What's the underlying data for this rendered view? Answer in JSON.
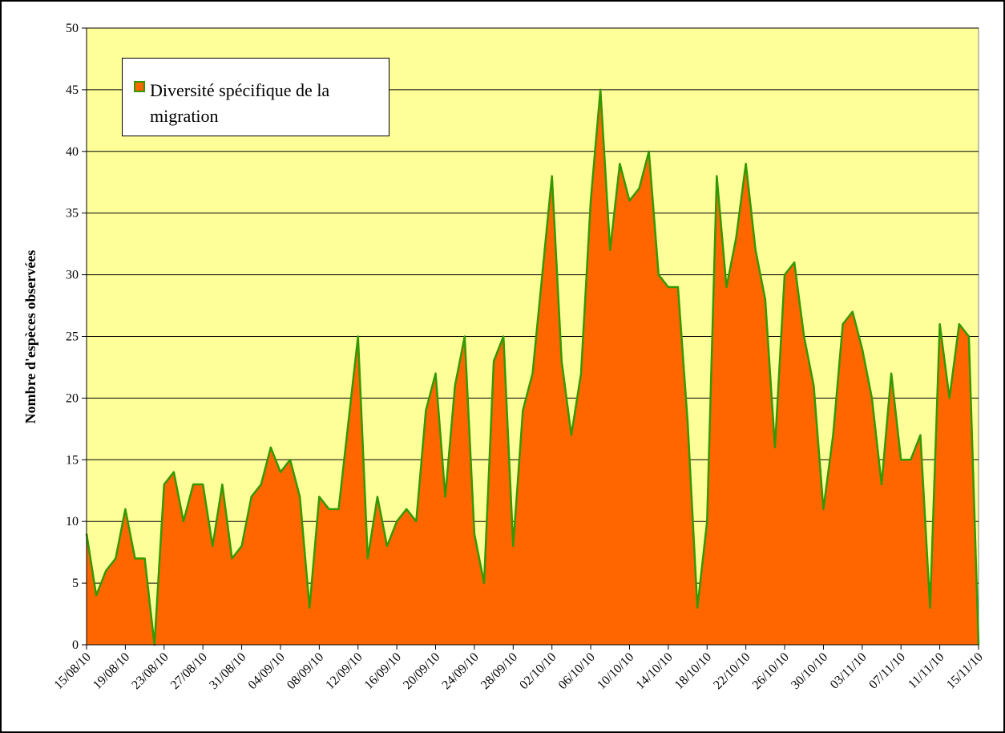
{
  "chart_data": {
    "type": "area",
    "y_label": "Nombre d'espèces observées",
    "categories": [
      "15/08/10",
      null,
      null,
      null,
      "19/08/10",
      null,
      null,
      null,
      "23/08/10",
      null,
      null,
      null,
      "27/08/10",
      null,
      null,
      null,
      "31/08/10",
      null,
      null,
      null,
      "04/09/10",
      null,
      null,
      null,
      "08/09/10",
      null,
      null,
      null,
      "12/09/10",
      null,
      null,
      null,
      "16/09/10",
      null,
      null,
      null,
      "20/09/10",
      null,
      null,
      null,
      "24/09/10",
      null,
      null,
      null,
      "28/09/10",
      null,
      null,
      null,
      "02/10/10",
      null,
      null,
      null,
      "06/10/10",
      null,
      null,
      null,
      "10/10/10",
      null,
      null,
      null,
      "14/10/10",
      null,
      null,
      null,
      "18/10/10",
      null,
      null,
      null,
      "22/10/10",
      null,
      null,
      null,
      "26/10/10",
      null,
      null,
      null,
      "30/10/10",
      null,
      null,
      null,
      "03/11/10",
      null,
      null,
      null,
      "07/11/10",
      null,
      null,
      null,
      "11/11/10",
      null,
      null,
      null,
      "15/11/10"
    ],
    "series": [
      {
        "name": "Diversité spécifique de la migration",
        "color": "#ff6600",
        "line_color": "#339900",
        "values": [
          9,
          4,
          6,
          7,
          11,
          7,
          7,
          0,
          13,
          14,
          10,
          13,
          13,
          8,
          13,
          7,
          8,
          12,
          13,
          16,
          14,
          15,
          12,
          3,
          12,
          11,
          11,
          18,
          25,
          7,
          12,
          8,
          10,
          11,
          10,
          19,
          22,
          12,
          21,
          25,
          9,
          5,
          23,
          25,
          8,
          19,
          22,
          30,
          38,
          23,
          17,
          22,
          36,
          45,
          32,
          39,
          36,
          37,
          40,
          30,
          29,
          29,
          18,
          3,
          10,
          38,
          29,
          33,
          39,
          32,
          28,
          16,
          30,
          31,
          25,
          21,
          11,
          17,
          26,
          27,
          24,
          20,
          13,
          22,
          15,
          15,
          17,
          3,
          26,
          20,
          26,
          25,
          0
        ]
      }
    ],
    "ylim": [
      0,
      50
    ],
    "yticks": [
      0,
      5,
      10,
      15,
      20,
      25,
      30,
      35,
      40,
      45,
      50
    ],
    "grid": true,
    "legend_position": "top-left",
    "plot_background": "#ffff99"
  }
}
